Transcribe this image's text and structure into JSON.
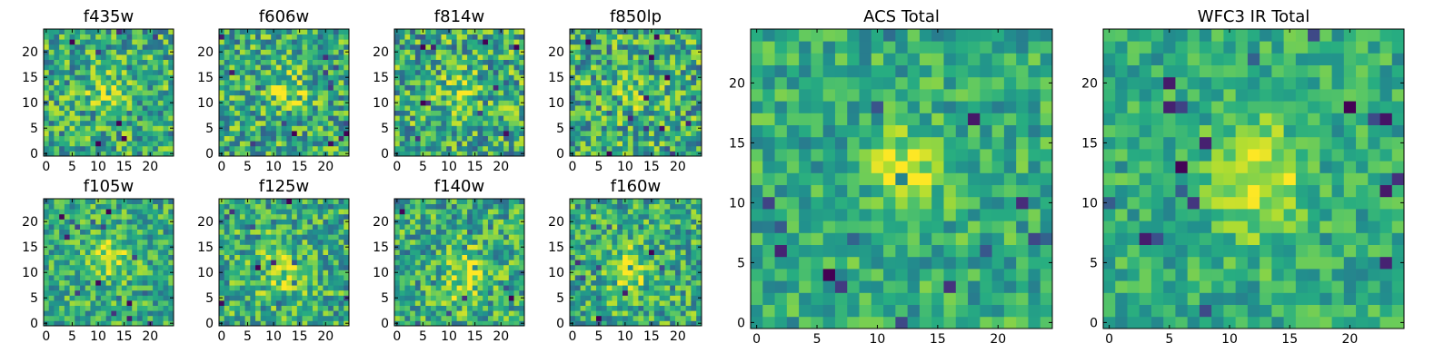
{
  "chart_data": [
    {
      "type": "heatmap",
      "title": "f435w",
      "size": 25,
      "colormap": "viridis",
      "xticks": [
        0,
        5,
        10,
        15,
        20
      ],
      "yticks": [
        0,
        5,
        10,
        15,
        20
      ],
      "noise": 0.3,
      "blob": {
        "cx": 12,
        "cy": 12,
        "sx": 3,
        "sy": 3,
        "amp": 0.18
      },
      "seed": 11
    },
    {
      "type": "heatmap",
      "title": "f606w",
      "size": 25,
      "colormap": "viridis",
      "xticks": [
        0,
        5,
        10,
        15,
        20
      ],
      "yticks": [
        0,
        5,
        10,
        15,
        20
      ],
      "noise": 0.3,
      "blob": {
        "cx": 12.5,
        "cy": 12.5,
        "sx": 2.5,
        "sy": 2.5,
        "amp": 0.25
      },
      "seed": 22
    },
    {
      "type": "heatmap",
      "title": "f814w",
      "size": 25,
      "colormap": "viridis",
      "xticks": [
        0,
        5,
        10,
        15,
        20
      ],
      "yticks": [
        0,
        5,
        10,
        15,
        20
      ],
      "noise": 0.32,
      "blob": {
        "cx": 12,
        "cy": 12.5,
        "sx": 2.5,
        "sy": 2.5,
        "amp": 0.2
      },
      "seed": 33
    },
    {
      "type": "heatmap",
      "title": "f850lp",
      "size": 25,
      "colormap": "viridis",
      "xticks": [
        0,
        5,
        10,
        15,
        20
      ],
      "yticks": [
        0,
        5,
        10,
        15,
        20
      ],
      "noise": 0.32,
      "blob": {
        "cx": 12,
        "cy": 13,
        "sx": 2.5,
        "sy": 2.5,
        "amp": 0.18
      },
      "seed": 44
    },
    {
      "type": "heatmap",
      "title": "f105w",
      "size": 25,
      "colormap": "viridis",
      "xticks": [
        0,
        5,
        10,
        15,
        20
      ],
      "yticks": [
        0,
        5,
        10,
        15,
        20
      ],
      "noise": 0.25,
      "blob": {
        "cx": 12,
        "cy": 13,
        "sx": 3.5,
        "sy": 3.5,
        "amp": 0.25
      },
      "seed": 55
    },
    {
      "type": "heatmap",
      "title": "f125w",
      "size": 25,
      "colormap": "viridis",
      "xticks": [
        0,
        5,
        10,
        15,
        20
      ],
      "yticks": [
        0,
        5,
        10,
        15,
        20
      ],
      "noise": 0.28,
      "blob": {
        "cx": 12,
        "cy": 10,
        "sx": 3,
        "sy": 4,
        "amp": 0.2
      },
      "seed": 66
    },
    {
      "type": "heatmap",
      "title": "f140w",
      "size": 25,
      "colormap": "viridis",
      "xticks": [
        0,
        5,
        10,
        15,
        20
      ],
      "yticks": [
        0,
        5,
        10,
        15,
        20
      ],
      "noise": 0.28,
      "blob": {
        "cx": 13,
        "cy": 9,
        "sx": 3,
        "sy": 4,
        "amp": 0.22
      },
      "seed": 77
    },
    {
      "type": "heatmap",
      "title": "f160w",
      "size": 25,
      "colormap": "viridis",
      "xticks": [
        0,
        5,
        10,
        15,
        20
      ],
      "yticks": [
        0,
        5,
        10,
        15,
        20
      ],
      "noise": 0.28,
      "blob": {
        "cx": 11,
        "cy": 11,
        "sx": 2.5,
        "sy": 3,
        "amp": 0.3
      },
      "seed": 88
    },
    {
      "type": "heatmap",
      "title": "ACS Total",
      "size": 25,
      "colormap": "viridis",
      "xticks": [
        0,
        5,
        10,
        15,
        20
      ],
      "yticks": [
        0,
        5,
        10,
        15,
        20
      ],
      "noise": 0.2,
      "blob": {
        "cx": 12.5,
        "cy": 12.5,
        "sx": 2,
        "sy": 2.5,
        "amp": 0.35
      },
      "seed": 99
    },
    {
      "type": "heatmap",
      "title": "WFC3 IR Total",
      "size": 25,
      "colormap": "viridis",
      "xticks": [
        0,
        5,
        10,
        15,
        20
      ],
      "yticks": [
        0,
        5,
        10,
        15,
        20
      ],
      "noise": 0.18,
      "blob": {
        "cx": 12.5,
        "cy": 12,
        "sx": 2.5,
        "sy": 3.5,
        "amp": 0.35
      },
      "seed": 123
    }
  ]
}
